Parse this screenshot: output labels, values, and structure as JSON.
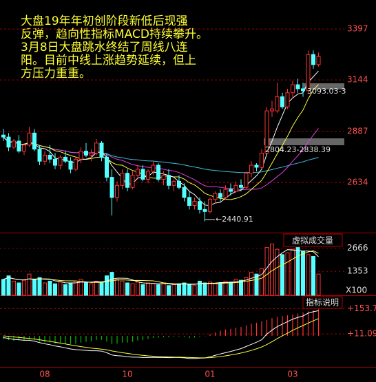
{
  "note_lines": [
    "大盘19年年初创阶段新低后现强",
    "反弹，趋向性指标MACD持续攀升。",
    "3月8日大盘跳水终结了周线八连",
    "阳。目前中线上涨趋势延续，但上",
    "方压力重重。"
  ],
  "chart_data": [
    {
      "type": "candlestick",
      "categories": [
        null,
        null,
        null,
        null,
        null,
        null,
        null,
        null,
        "08",
        null,
        null,
        null,
        null,
        null,
        null,
        null,
        null,
        null,
        null,
        null,
        null,
        null,
        null,
        null,
        "10",
        null,
        null,
        null,
        null,
        null,
        null,
        null,
        null,
        null,
        null,
        null,
        null,
        null,
        null,
        null,
        "01",
        null,
        null,
        null,
        null,
        null,
        null,
        null,
        null,
        null,
        null,
        null,
        null,
        null,
        null,
        null,
        "03",
        null,
        null,
        null,
        null,
        null
      ],
      "open": [
        2870,
        2860,
        2810,
        2840,
        2790,
        2820,
        2880,
        2800,
        2740,
        2770,
        2750,
        2720,
        2760,
        2740,
        2700,
        2750,
        2790,
        2770,
        2780,
        2830,
        2760,
        2660,
        2560,
        2620,
        2680,
        2610,
        2670,
        2700,
        2650,
        2690,
        2720,
        2650,
        2670,
        2620,
        2640,
        2610,
        2560,
        2520,
        2540,
        2500,
        2490,
        2550,
        2580,
        2560,
        2600,
        2590,
        2620,
        2610,
        2680,
        2720,
        2710,
        2780,
        2990,
        2990,
        3060,
        3010,
        3080,
        3120,
        3100,
        3090,
        3270,
        3220
      ],
      "high": [
        2900,
        2880,
        2850,
        2870,
        2830,
        2910,
        2900,
        2820,
        2790,
        2820,
        2780,
        2770,
        2790,
        2760,
        2760,
        2810,
        2830,
        2800,
        2850,
        2840,
        2780,
        2700,
        2640,
        2700,
        2700,
        2690,
        2720,
        2720,
        2700,
        2740,
        2730,
        2690,
        2700,
        2650,
        2670,
        2630,
        2590,
        2560,
        2560,
        2540,
        2560,
        2590,
        2600,
        2620,
        2630,
        2640,
        2650,
        2690,
        2740,
        2730,
        2800,
        3010,
        3040,
        3130,
        3080,
        3100,
        3140,
        3150,
        3130,
        3290,
        3290,
        3280
      ],
      "low": [
        2840,
        2790,
        2800,
        2780,
        2770,
        2810,
        2790,
        2720,
        2720,
        2730,
        2700,
        2700,
        2730,
        2680,
        2690,
        2730,
        2760,
        2740,
        2770,
        2740,
        2640,
        2470,
        2540,
        2600,
        2590,
        2600,
        2650,
        2640,
        2630,
        2670,
        2640,
        2620,
        2600,
        2590,
        2600,
        2540,
        2500,
        2500,
        2480,
        2440.91,
        2480,
        2530,
        2540,
        2550,
        2570,
        2580,
        2590,
        2600,
        2660,
        2690,
        2700,
        2780,
        2960,
        2980,
        3000,
        3000,
        3050,
        3080,
        3060,
        3080,
        3200,
        3210
      ],
      "close": [
        2860,
        2810,
        2840,
        2790,
        2820,
        2880,
        2800,
        2740,
        2770,
        2750,
        2720,
        2760,
        2740,
        2700,
        2750,
        2790,
        2770,
        2780,
        2830,
        2760,
        2660,
        2560,
        2620,
        2680,
        2610,
        2670,
        2700,
        2650,
        2690,
        2720,
        2650,
        2670,
        2620,
        2640,
        2610,
        2560,
        2520,
        2540,
        2500,
        2490,
        2550,
        2580,
        2560,
        2600,
        2590,
        2620,
        2610,
        2680,
        2720,
        2710,
        2780,
        2990,
        3000,
        3060,
        3010,
        3080,
        3120,
        3100,
        3090,
        3270,
        3220,
        3260
      ],
      "up_color": "#ff3232",
      "down_color": "#54ffff",
      "ylim": [
        2385,
        3541
      ],
      "yticks": [
        3397,
        3144,
        2887,
        2634
      ],
      "annotations": [
        "3093.03-3",
        "2804.23-2838.39",
        "←2440.91"
      ]
    },
    {
      "type": "volume",
      "button": "虚拟成交量",
      "unit": "X100",
      "values": [
        900,
        1100,
        800,
        700,
        850,
        1200,
        900,
        1000,
        700,
        800,
        650,
        750,
        600,
        700,
        800,
        900,
        700,
        650,
        800,
        750,
        1100,
        1300,
        900,
        800,
        700,
        650,
        750,
        600,
        700,
        650,
        600,
        700,
        550,
        600,
        650,
        700,
        600,
        550,
        800,
        700,
        750,
        650,
        700,
        800,
        750,
        900,
        850,
        1000,
        1300,
        1200,
        1500,
        2700,
        2900,
        2600,
        2300,
        2400,
        2600,
        2700,
        2500,
        2300,
        2200,
        1200
      ],
      "ylim": [
        0,
        3502
      ],
      "yticks": [
        2666,
        1353
      ]
    },
    {
      "type": "macd",
      "button": "指标说明",
      "dif": [
        -10,
        -15,
        -20,
        -22,
        -25,
        -25,
        -30,
        -38,
        -45,
        -50,
        -57,
        -62,
        -68,
        -74,
        -78,
        -80,
        -82,
        -84,
        -84,
        -86,
        -95,
        -108,
        -112,
        -114,
        -118,
        -120,
        -120,
        -122,
        -122,
        -121,
        -122,
        -122,
        -123,
        -122,
        -122,
        -124,
        -128,
        -128,
        -126,
        -125,
        -118,
        -110,
        -102,
        -95,
        -88,
        -80,
        -72,
        -60,
        -48,
        -36,
        -22,
        10,
        32,
        52,
        66,
        80,
        94,
        104,
        112,
        128,
        136,
        142
      ],
      "dea": [
        0,
        -3,
        -6,
        -9,
        -12,
        -15,
        -18,
        -22,
        -27,
        -31,
        -36,
        -41,
        -46,
        -51,
        -56,
        -61,
        -65,
        -69,
        -72,
        -75,
        -79,
        -85,
        -90,
        -95,
        -99,
        -103,
        -107,
        -110,
        -113,
        -115,
        -117,
        -118,
        -119,
        -120,
        -120,
        -121,
        -122,
        -123,
        -124,
        -124,
        -123,
        -120,
        -117,
        -113,
        -108,
        -103,
        -97,
        -90,
        -82,
        -73,
        -63,
        -49,
        -33,
        -16,
        0,
        15,
        31,
        45,
        58,
        72,
        85,
        97
      ],
      "values": [
        -20,
        -24,
        -28,
        -26,
        -26,
        -20,
        -24,
        -32,
        -36,
        -38,
        -42,
        -42,
        -44,
        -46,
        -44,
        -38,
        -34,
        -30,
        -24,
        -22,
        -32,
        -46,
        -44,
        -38,
        -38,
        -34,
        -26,
        -24,
        -18,
        -12,
        -10,
        -8,
        -8,
        -4,
        -4,
        -6,
        -12,
        -10,
        -4,
        -2,
        10,
        20,
        30,
        36,
        40,
        46,
        50,
        60,
        68,
        74,
        82,
        90,
        100,
        108,
        112,
        116,
        120,
        126,
        132,
        138,
        144,
        150
      ],
      "ylim": [
        -175,
        225
      ],
      "yticks": [
        {
          "value": 153.7,
          "label": "+153.7"
        },
        {
          "value": 11.09,
          "label": "+11.09"
        }
      ]
    }
  ]
}
